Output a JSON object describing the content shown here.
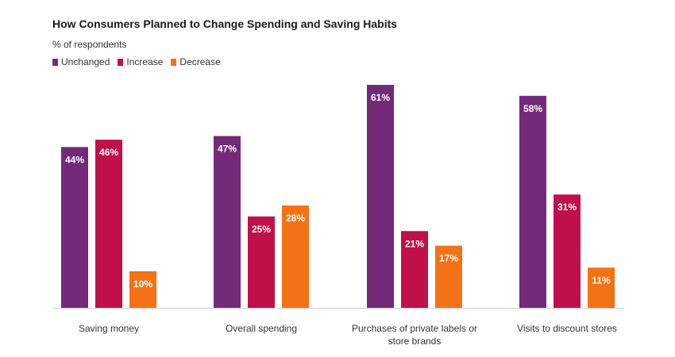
{
  "chart_data": {
    "type": "bar",
    "title": "How Consumers Planned to Change Spending and Saving Habits",
    "subtitle": "% of respondents",
    "categories": [
      [
        "Saving money"
      ],
      [
        "Overall spending"
      ],
      [
        "Purchases of private labels or",
        "store brands"
      ],
      [
        "Visits to discount stores"
      ]
    ],
    "series": [
      {
        "name": "Unchanged",
        "color": "#722a79",
        "values": [
          44,
          47,
          61,
          58
        ]
      },
      {
        "name": "Increase",
        "color": "#c0104a",
        "values": [
          46,
          25,
          21,
          31
        ]
      },
      {
        "name": "Decrease",
        "color": "#f47216",
        "values": [
          10,
          28,
          17,
          11
        ]
      }
    ],
    "value_suffix": "%",
    "ylim": [
      0,
      61
    ],
    "legend_position": "top-left",
    "grid": false
  }
}
